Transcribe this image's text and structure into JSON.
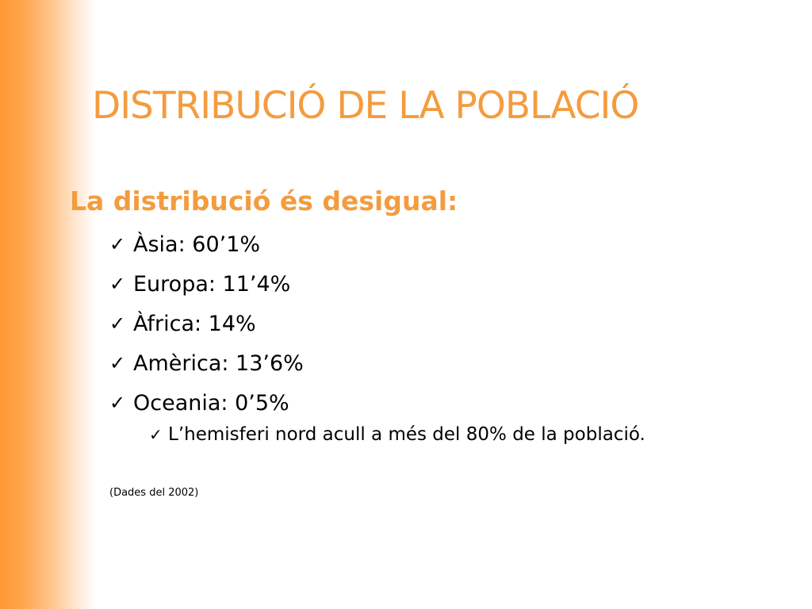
{
  "slide": {
    "title": "DISTRIBUCIÓ DE LA POBLACIÓ",
    "intro": "La distribució és desigual:",
    "bullets": [
      {
        "icon": "checkmark-icon",
        "text": "Àsia: 60’1%"
      },
      {
        "icon": "checkmark-icon",
        "text": "Europa: 11’4%"
      },
      {
        "icon": "checkmark-icon",
        "text": "Àfrica: 14%"
      },
      {
        "icon": "checkmark-icon",
        "text": "Amèrica: 13’6%"
      },
      {
        "icon": "checkmark-icon",
        "text": "Oceania: 0’5%"
      }
    ],
    "sub_bullet": {
      "icon": "checkmark-icon",
      "text": "L’hemisferi nord acull a més del 80% de la població."
    },
    "note": "(Dades del 2002)"
  },
  "colors": {
    "accent": "#f39c3f",
    "side_bar": "#ff9933",
    "text": "#000000",
    "background": "#ffffff"
  }
}
